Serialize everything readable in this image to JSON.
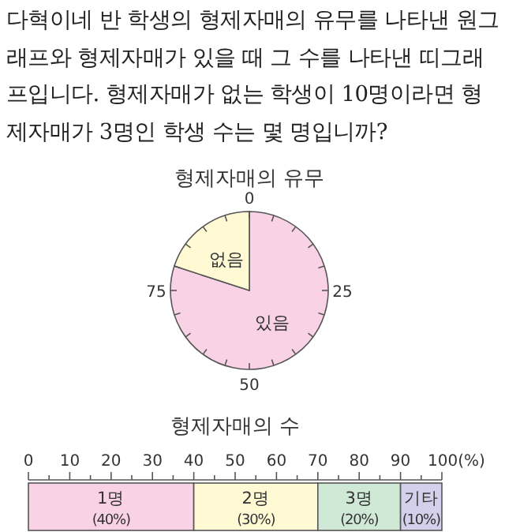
{
  "chart_data": [
    {
      "type": "other",
      "title": "다혁이네 반 학생의 형제자매의 유무를 나타낸 원그래프와 형제자매가 있을 때 그 수를 나타낸 띠그래프입니다. 형제자매가 없는 학생이 10명이라면 형제자매가 3명인 학생 수는 몇 명입니까?"
    },
    {
      "type": "pie",
      "title": "형제자매의 유무",
      "categories": [
        "있음",
        "없음"
      ],
      "values": [
        80,
        20
      ],
      "colors": [
        "#f9d3e5",
        "#fffad4"
      ],
      "annotations": [
        "0",
        "25",
        "50",
        "75"
      ]
    },
    {
      "type": "bar",
      "title": "형제자매의 수",
      "orientation": "horizontal",
      "stacked": true,
      "categories": [
        null
      ],
      "xlim": [
        0,
        100
      ],
      "xticks": [
        0,
        {
          "value": 5,
          "label": null
        },
        10,
        {
          "value": 15,
          "label": null
        },
        20,
        {
          "value": 25,
          "label": null
        },
        30,
        {
          "value": 35,
          "label": null
        },
        40,
        {
          "value": 45,
          "label": null
        },
        50,
        {
          "value": 55,
          "label": null
        },
        60,
        {
          "value": 65,
          "label": null
        },
        70,
        {
          "value": 75,
          "label": null
        },
        80,
        {
          "value": 85,
          "label": null
        },
        90,
        {
          "value": 95,
          "label": null
        },
        {
          "value": 100,
          "label": "100(%)"
        }
      ],
      "series": [
        {
          "name": "1명",
          "color": "#f9d3e5",
          "values": [
            40
          ],
          "value_labels": [
            "(40%)"
          ]
        },
        {
          "name": "2명",
          "color": "#fffad4",
          "values": [
            30
          ],
          "value_labels": [
            "(30%)"
          ]
        },
        {
          "name": "3명",
          "color": "#d0e9d6",
          "values": [
            20
          ],
          "value_labels": [
            "(20%)"
          ]
        },
        {
          "name": "기타",
          "color": "#d4cfea",
          "values": [
            10
          ],
          "value_labels": [
            "(10%)"
          ]
        }
      ]
    }
  ]
}
